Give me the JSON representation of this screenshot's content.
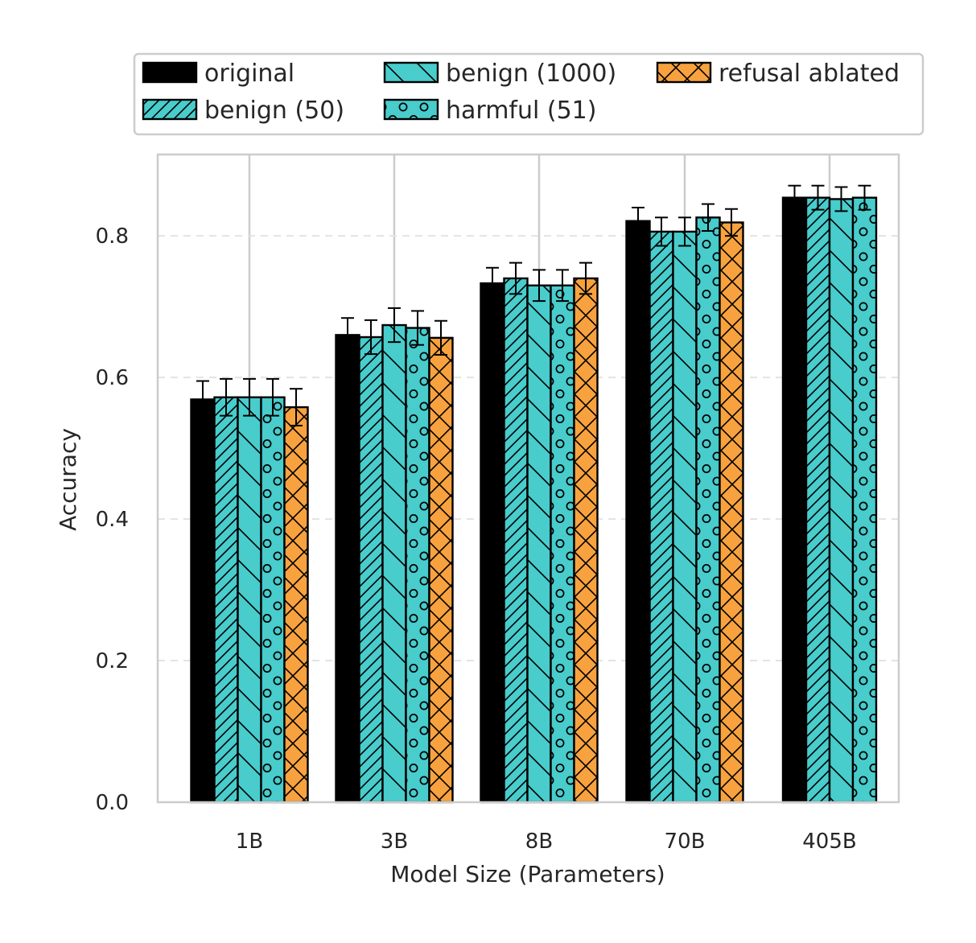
{
  "chart_data": {
    "type": "bar",
    "xlabel": "Model Size (Parameters)",
    "ylabel": "Accuracy",
    "categories": [
      "1B",
      "3B",
      "8B",
      "70B",
      "405B"
    ],
    "ylim": [
      0,
      0.915
    ],
    "yticks": [
      0.0,
      0.2,
      0.4,
      0.6,
      0.8
    ],
    "ytick_labels": [
      "0.0",
      "0.2",
      "0.4",
      "0.6",
      "0.8"
    ],
    "grid": "on",
    "legend_placement": "top",
    "series": [
      {
        "name": "original",
        "color": "#000000",
        "hatch": "none",
        "values": [
          0.569,
          0.66,
          0.733,
          0.821,
          0.854
        ],
        "errors": [
          0.026,
          0.024,
          0.022,
          0.019,
          0.017
        ]
      },
      {
        "name": "benign (50)",
        "color": "#48cccc",
        "hatch": "diagonal",
        "values": [
          0.572,
          0.657,
          0.74,
          0.806,
          0.854
        ],
        "errors": [
          0.026,
          0.024,
          0.022,
          0.02,
          0.017
        ]
      },
      {
        "name": "benign (1000)",
        "color": "#48cccc",
        "hatch": "backslash",
        "values": [
          0.572,
          0.674,
          0.73,
          0.806,
          0.852
        ],
        "errors": [
          0.026,
          0.024,
          0.022,
          0.02,
          0.017
        ]
      },
      {
        "name": "harmful (51)",
        "color": "#48cccc",
        "hatch": "circles",
        "values": [
          0.572,
          0.67,
          0.73,
          0.826,
          0.854
        ],
        "errors": [
          0.026,
          0.024,
          0.022,
          0.019,
          0.017
        ]
      },
      {
        "name": "refusal ablated",
        "color": "#f7a23f",
        "hatch": "crosshatch",
        "values": [
          0.558,
          0.656,
          0.74,
          0.819,
          null
        ],
        "errors": [
          0.026,
          0.024,
          0.022,
          0.019,
          null
        ]
      }
    ]
  }
}
